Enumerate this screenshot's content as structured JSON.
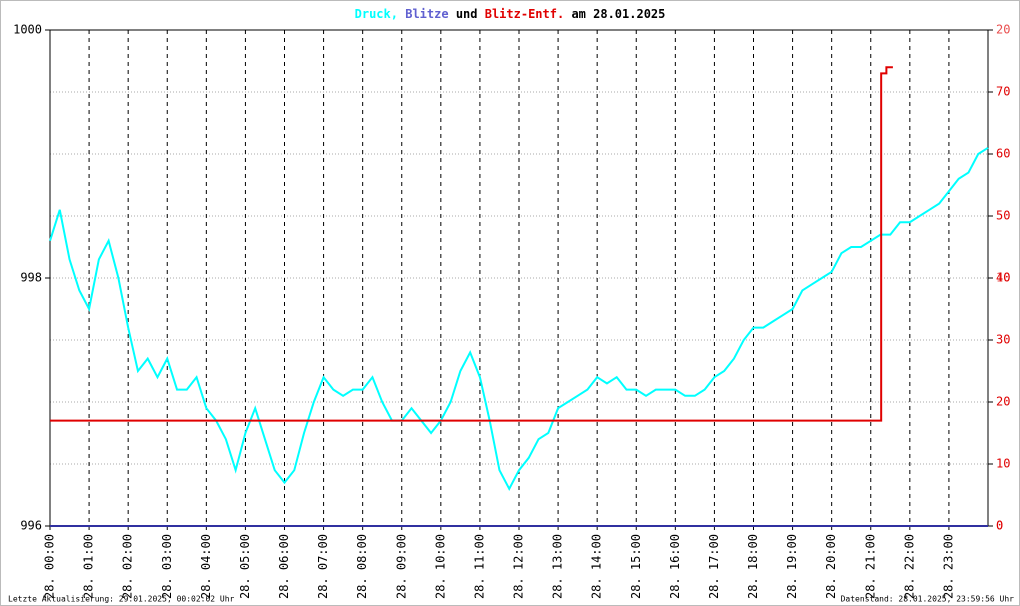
{
  "chart_data": {
    "type": "line",
    "title": "und",
    "subtitle": "am 28.01.2025",
    "footer_left": "Letzte Aktualisierung: 29.01.2025, 00:02:02 Uhr",
    "footer_right": "Datenstand: 28.01.2025, 23:59:56 Uhr",
    "xlim": [
      "00:00",
      "24:00"
    ],
    "xticks": [
      {
        "value": "00:00",
        "label": "28. 00:00"
      },
      {
        "value": "01:00",
        "label": "28. 01:00"
      },
      {
        "value": "02:00",
        "label": "28. 02:00"
      },
      {
        "value": "03:00",
        "label": "28. 03:00"
      },
      {
        "value": "04:00",
        "label": "28. 04:00"
      },
      {
        "value": "05:00",
        "label": "28. 05:00"
      },
      {
        "value": "06:00",
        "label": "28. 06:00"
      },
      {
        "value": "07:00",
        "label": "28. 07:00"
      },
      {
        "value": "08:00",
        "label": "28. 08:00"
      },
      {
        "value": "09:00",
        "label": "28. 09:00"
      },
      {
        "value": "10:00",
        "label": "28. 10:00"
      },
      {
        "value": "11:00",
        "label": "28. 11:00"
      },
      {
        "value": "12:00",
        "label": "28. 12:00"
      },
      {
        "value": "13:00",
        "label": "28. 13:00"
      },
      {
        "value": "14:00",
        "label": "28. 14:00"
      },
      {
        "value": "15:00",
        "label": "28. 15:00"
      },
      {
        "value": "16:00",
        "label": "28. 16:00"
      },
      {
        "value": "17:00",
        "label": "28. 17:00"
      },
      {
        "value": "18:00",
        "label": "28. 18:00"
      },
      {
        "value": "19:00",
        "label": "28. 19:00"
      },
      {
        "value": "20:00",
        "label": "28. 20:00"
      },
      {
        "value": "21:00",
        "label": "28. 21:00"
      },
      {
        "value": "22:00",
        "label": "28. 22:00"
      },
      {
        "value": "23:00",
        "label": "28. 23:00"
      }
    ],
    "ylim": [
      996,
      1000
    ],
    "yticks": [
      996,
      998,
      1000
    ],
    "y2lim": [
      0,
      80
    ],
    "y2ticks": [
      0,
      10,
      20,
      30,
      40,
      50,
      60,
      70
    ],
    "y3lim": [
      0,
      20
    ],
    "y3ticks": [
      0,
      10,
      20
    ],
    "grid": true,
    "series": [
      {
        "name": "Druck,",
        "color": "#00ffff",
        "axis": "y",
        "x": [
          "00:00",
          "00:15",
          "00:30",
          "00:45",
          "01:00",
          "01:15",
          "01:30",
          "01:45",
          "02:00",
          "02:15",
          "02:30",
          "02:45",
          "03:00",
          "03:15",
          "03:30",
          "03:45",
          "04:00",
          "04:15",
          "04:30",
          "04:45",
          "05:00",
          "05:15",
          "05:30",
          "05:45",
          "06:00",
          "06:15",
          "06:30",
          "06:45",
          "07:00",
          "07:15",
          "07:30",
          "07:45",
          "08:00",
          "08:15",
          "08:30",
          "08:45",
          "09:00",
          "09:15",
          "09:30",
          "09:45",
          "10:00",
          "10:15",
          "10:30",
          "10:45",
          "11:00",
          "11:15",
          "11:30",
          "11:45",
          "12:00",
          "12:15",
          "12:30",
          "12:45",
          "13:00",
          "13:15",
          "13:30",
          "13:45",
          "14:00",
          "14:15",
          "14:30",
          "14:45",
          "15:00",
          "15:15",
          "15:30",
          "15:45",
          "16:00",
          "16:15",
          "16:30",
          "16:45",
          "17:00",
          "17:15",
          "17:30",
          "17:45",
          "18:00",
          "18:15",
          "18:30",
          "18:45",
          "19:00",
          "19:15",
          "19:30",
          "19:45",
          "20:00",
          "20:15",
          "20:30",
          "20:45",
          "21:00",
          "21:15",
          "21:30",
          "21:45",
          "22:00",
          "22:15",
          "22:30",
          "22:45",
          "23:00",
          "23:15",
          "23:30",
          "23:45",
          "24:00"
        ],
        "values": [
          998.3,
          998.55,
          998.15,
          997.9,
          997.75,
          998.15,
          998.3,
          998.0,
          997.6,
          997.25,
          997.35,
          997.2,
          997.35,
          997.1,
          997.1,
          997.2,
          996.95,
          996.85,
          996.7,
          996.45,
          996.75,
          996.95,
          996.7,
          996.45,
          996.35,
          996.45,
          996.75,
          997.0,
          997.2,
          997.1,
          997.05,
          997.1,
          997.1,
          997.2,
          997.0,
          996.85,
          996.85,
          996.95,
          996.85,
          996.75,
          996.85,
          997.0,
          997.25,
          997.4,
          997.2,
          996.85,
          996.45,
          996.3,
          996.45,
          996.55,
          996.7,
          996.75,
          996.95,
          997.0,
          997.05,
          997.1,
          997.2,
          997.15,
          997.2,
          997.1,
          997.1,
          997.05,
          997.1,
          997.1,
          997.1,
          997.05,
          997.05,
          997.1,
          997.2,
          997.25,
          997.35,
          997.5,
          997.6,
          997.6,
          997.65,
          997.7,
          997.75,
          997.9,
          997.95,
          998.0,
          998.05,
          998.2,
          998.25,
          998.25,
          998.3,
          998.35,
          998.35,
          998.45,
          998.45,
          998.5,
          998.55,
          998.6,
          998.7,
          998.8,
          998.85,
          999.0,
          999.05
        ]
      },
      {
        "name": "Blitze",
        "color": "#3030a0",
        "axis": "y3",
        "x": [
          "00:00",
          "24:00"
        ],
        "values": [
          0,
          0
        ]
      },
      {
        "name": "Blitz-Entf.",
        "color": "#e00000",
        "axis": "y2",
        "x": [
          "00:00",
          "21:16",
          "21:16",
          "21:24",
          "21:24",
          "21:34"
        ],
        "values": [
          17,
          17,
          73,
          73,
          74,
          74
        ]
      }
    ]
  }
}
